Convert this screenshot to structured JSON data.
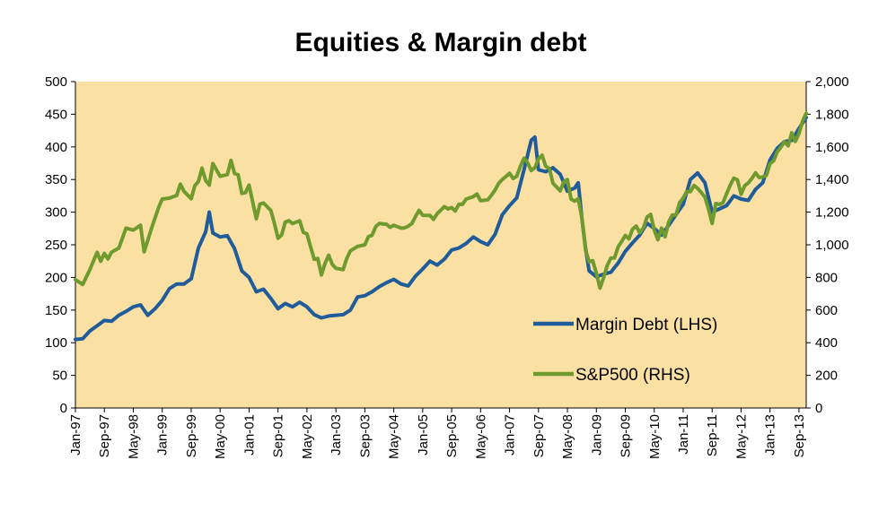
{
  "chart_data": {
    "type": "line",
    "title": "Equities & Margin debt",
    "xlabel": "",
    "ylabel_left": "",
    "ylabel_right": "",
    "x_tick_labels": [
      "Jan-97",
      "Sep-97",
      "May-98",
      "Jan-99",
      "Sep-99",
      "May-00",
      "Jan-01",
      "Sep-01",
      "May-02",
      "Jan-03",
      "Sep-03",
      "May-04",
      "Jan-05",
      "Sep-05",
      "May-06",
      "Jan-07",
      "Sep-07",
      "May-08",
      "Jan-09",
      "Sep-09",
      "May-10",
      "Jan-11",
      "Sep-11",
      "May-12",
      "Jan-13",
      "Sep-13"
    ],
    "x_range": [
      "Jan-97",
      "Nov-13"
    ],
    "y_left": {
      "min": 0,
      "max": 500,
      "step": 50,
      "tick_labels": [
        "0",
        "50",
        "100",
        "150",
        "200",
        "250",
        "300",
        "350",
        "400",
        "450",
        "500"
      ]
    },
    "y_right": {
      "min": 0,
      "max": 2000,
      "step": 200,
      "tick_labels": [
        "0",
        "200",
        "400",
        "600",
        "800",
        "1,000",
        "1,200",
        "1,400",
        "1,600",
        "1,800",
        "2,000"
      ]
    },
    "plot_background": "#FBE0A4",
    "grid": false,
    "legend_position": "lower-right inside plot",
    "series": [
      {
        "name": "Margin Debt (LHS)",
        "axis": "left",
        "color": "#1F5C99",
        "points": [
          [
            "Jan-97",
            105
          ],
          [
            "Mar-97",
            106
          ],
          [
            "May-97",
            118
          ],
          [
            "Jul-97",
            126
          ],
          [
            "Sep-97",
            134
          ],
          [
            "Nov-97",
            133
          ],
          [
            "Jan-98",
            142
          ],
          [
            "Mar-98",
            148
          ],
          [
            "May-98",
            155
          ],
          [
            "Jul-98",
            158
          ],
          [
            "Sep-98",
            142
          ],
          [
            "Nov-98",
            152
          ],
          [
            "Jan-99",
            165
          ],
          [
            "Mar-99",
            183
          ],
          [
            "May-99",
            190
          ],
          [
            "Jul-99",
            190
          ],
          [
            "Sep-99",
            198
          ],
          [
            "Nov-99",
            245
          ],
          [
            "Jan-00",
            270
          ],
          [
            "Feb-00",
            300
          ],
          [
            "Mar-00",
            268
          ],
          [
            "May-00",
            262
          ],
          [
            "Jul-00",
            264
          ],
          [
            "Sep-00",
            244
          ],
          [
            "Nov-00",
            210
          ],
          [
            "Jan-01",
            200
          ],
          [
            "Mar-01",
            178
          ],
          [
            "May-01",
            182
          ],
          [
            "Jul-01",
            168
          ],
          [
            "Sep-01",
            152
          ],
          [
            "Nov-01",
            160
          ],
          [
            "Jan-02",
            155
          ],
          [
            "Mar-02",
            162
          ],
          [
            "May-02",
            155
          ],
          [
            "Jul-02",
            143
          ],
          [
            "Sep-02",
            138
          ],
          [
            "Nov-02",
            141
          ],
          [
            "Jan-03",
            142
          ],
          [
            "Mar-03",
            143
          ],
          [
            "May-03",
            150
          ],
          [
            "Jul-03",
            170
          ],
          [
            "Sep-03",
            172
          ],
          [
            "Nov-03",
            178
          ],
          [
            "Jan-04",
            186
          ],
          [
            "Mar-04",
            192
          ],
          [
            "May-04",
            197
          ],
          [
            "Jul-04",
            190
          ],
          [
            "Sep-04",
            187
          ],
          [
            "Nov-04",
            202
          ],
          [
            "Jan-05",
            213
          ],
          [
            "Mar-05",
            225
          ],
          [
            "May-05",
            219
          ],
          [
            "Jul-05",
            228
          ],
          [
            "Sep-05",
            242
          ],
          [
            "Nov-05",
            245
          ],
          [
            "Jan-06",
            252
          ],
          [
            "Mar-06",
            262
          ],
          [
            "May-06",
            255
          ],
          [
            "Jul-06",
            250
          ],
          [
            "Sep-06",
            266
          ],
          [
            "Nov-06",
            296
          ],
          [
            "Jan-07",
            310
          ],
          [
            "Mar-07",
            322
          ],
          [
            "May-07",
            365
          ],
          [
            "Jul-07",
            410
          ],
          [
            "Aug-07",
            415
          ],
          [
            "Sep-07",
            365
          ],
          [
            "Nov-07",
            362
          ],
          [
            "Jan-08",
            368
          ],
          [
            "Mar-08",
            358
          ],
          [
            "May-08",
            332
          ],
          [
            "Jul-08",
            337
          ],
          [
            "Aug-08",
            345
          ],
          [
            "Sep-08",
            290
          ],
          [
            "Oct-08",
            245
          ],
          [
            "Nov-08",
            210
          ],
          [
            "Jan-09",
            201
          ],
          [
            "Mar-09",
            205
          ],
          [
            "May-09",
            208
          ],
          [
            "Jul-09",
            222
          ],
          [
            "Sep-09",
            240
          ],
          [
            "Nov-09",
            253
          ],
          [
            "Jan-10",
            265
          ],
          [
            "Mar-10",
            283
          ],
          [
            "May-10",
            275
          ],
          [
            "Jul-10",
            265
          ],
          [
            "Sep-10",
            280
          ],
          [
            "Nov-10",
            296
          ],
          [
            "Jan-11",
            312
          ],
          [
            "Mar-11",
            350
          ],
          [
            "May-11",
            360
          ],
          [
            "Jul-11",
            345
          ],
          [
            "Sep-11",
            300
          ],
          [
            "Nov-11",
            305
          ],
          [
            "Jan-12",
            310
          ],
          [
            "Mar-12",
            325
          ],
          [
            "May-12",
            320
          ],
          [
            "Jul-12",
            318
          ],
          [
            "Sep-12",
            335
          ],
          [
            "Nov-12",
            345
          ],
          [
            "Jan-13",
            380
          ],
          [
            "Mar-13",
            398
          ],
          [
            "May-13",
            408
          ],
          [
            "Jul-13",
            410
          ],
          [
            "Sep-13",
            428
          ],
          [
            "Nov-13",
            445
          ]
        ]
      },
      {
        "name": "S&P500 (RHS)",
        "axis": "right",
        "color": "#6E9A2E",
        "points": [
          [
            "Jan-97",
            786
          ],
          [
            "Mar-97",
            757
          ],
          [
            "May-97",
            848
          ],
          [
            "Jul-97",
            954
          ],
          [
            "Aug-97",
            899
          ],
          [
            "Sep-97",
            947
          ],
          [
            "Oct-97",
            914
          ],
          [
            "Nov-97",
            955
          ],
          [
            "Jan-98",
            980
          ],
          [
            "Mar-98",
            1102
          ],
          [
            "May-98",
            1090
          ],
          [
            "Jul-98",
            1120
          ],
          [
            "Aug-98",
            957
          ],
          [
            "Oct-98",
            1098
          ],
          [
            "Dec-98",
            1229
          ],
          [
            "Jan-99",
            1280
          ],
          [
            "Mar-99",
            1286
          ],
          [
            "May-99",
            1302
          ],
          [
            "Jun-99",
            1372
          ],
          [
            "Jul-99",
            1328
          ],
          [
            "Sep-99",
            1282
          ],
          [
            "Oct-99",
            1362
          ],
          [
            "Nov-99",
            1388
          ],
          [
            "Dec-99",
            1469
          ],
          [
            "Jan-00",
            1394
          ],
          [
            "Feb-00",
            1366
          ],
          [
            "Mar-00",
            1498
          ],
          [
            "May-00",
            1420
          ],
          [
            "Jul-00",
            1430
          ],
          [
            "Aug-00",
            1517
          ],
          [
            "Sep-00",
            1436
          ],
          [
            "Oct-00",
            1429
          ],
          [
            "Nov-00",
            1315
          ],
          [
            "Dec-00",
            1320
          ],
          [
            "Jan-01",
            1366
          ],
          [
            "Mar-01",
            1160
          ],
          [
            "Apr-01",
            1249
          ],
          [
            "May-01",
            1256
          ],
          [
            "Jul-01",
            1211
          ],
          [
            "Aug-01",
            1133
          ],
          [
            "Sep-01",
            1040
          ],
          [
            "Oct-01",
            1060
          ],
          [
            "Nov-01",
            1139
          ],
          [
            "Dec-01",
            1148
          ],
          [
            "Jan-02",
            1130
          ],
          [
            "Mar-02",
            1147
          ],
          [
            "Apr-02",
            1076
          ],
          [
            "May-02",
            1067
          ],
          [
            "Jun-02",
            989
          ],
          [
            "Jul-02",
            911
          ],
          [
            "Aug-02",
            916
          ],
          [
            "Sep-02",
            815
          ],
          [
            "Oct-02",
            885
          ],
          [
            "Nov-02",
            936
          ],
          [
            "Dec-02",
            880
          ],
          [
            "Jan-03",
            856
          ],
          [
            "Mar-03",
            848
          ],
          [
            "Apr-03",
            916
          ],
          [
            "May-03",
            963
          ],
          [
            "Jul-03",
            990
          ],
          [
            "Sep-03",
            1000
          ],
          [
            "Oct-03",
            1050
          ],
          [
            "Nov-03",
            1058
          ],
          [
            "Dec-03",
            1111
          ],
          [
            "Jan-04",
            1131
          ],
          [
            "Mar-04",
            1126
          ],
          [
            "Apr-04",
            1107
          ],
          [
            "May-04",
            1120
          ],
          [
            "Jul-04",
            1102
          ],
          [
            "Aug-04",
            1104
          ],
          [
            "Sep-04",
            1114
          ],
          [
            "Oct-04",
            1130
          ],
          [
            "Nov-04",
            1173
          ],
          [
            "Dec-04",
            1211
          ],
          [
            "Jan-05",
            1181
          ],
          [
            "Mar-05",
            1180
          ],
          [
            "Apr-05",
            1156
          ],
          [
            "May-05",
            1191
          ],
          [
            "Jul-05",
            1234
          ],
          [
            "Aug-05",
            1220
          ],
          [
            "Sep-05",
            1228
          ],
          [
            "Oct-05",
            1207
          ],
          [
            "Nov-05",
            1249
          ],
          [
            "Dec-05",
            1248
          ],
          [
            "Jan-06",
            1280
          ],
          [
            "Mar-06",
            1295
          ],
          [
            "Apr-06",
            1311
          ],
          [
            "May-06",
            1270
          ],
          [
            "Jul-06",
            1276
          ],
          [
            "Aug-06",
            1304
          ],
          [
            "Sep-06",
            1335
          ],
          [
            "Oct-06",
            1377
          ],
          [
            "Nov-06",
            1400
          ],
          [
            "Dec-06",
            1418
          ],
          [
            "Jan-07",
            1438
          ],
          [
            "Feb-07",
            1406
          ],
          [
            "Mar-07",
            1420
          ],
          [
            "Apr-07",
            1482
          ],
          [
            "May-07",
            1530
          ],
          [
            "Jun-07",
            1503
          ],
          [
            "Jul-07",
            1455
          ],
          [
            "Aug-07",
            1473
          ],
          [
            "Sep-07",
            1526
          ],
          [
            "Oct-07",
            1549
          ],
          [
            "Nov-07",
            1481
          ],
          [
            "Dec-07",
            1468
          ],
          [
            "Jan-08",
            1378
          ],
          [
            "Mar-08",
            1330
          ],
          [
            "Apr-08",
            1385
          ],
          [
            "May-08",
            1400
          ],
          [
            "Jun-08",
            1280
          ],
          [
            "Jul-08",
            1267
          ],
          [
            "Aug-08",
            1282
          ],
          [
            "Sep-08",
            1166
          ],
          [
            "Oct-08",
            968
          ],
          [
            "Nov-08",
            896
          ],
          [
            "Dec-08",
            903
          ],
          [
            "Jan-09",
            826
          ],
          [
            "Feb-09",
            735
          ],
          [
            "Mar-09",
            798
          ],
          [
            "Apr-09",
            873
          ],
          [
            "May-09",
            919
          ],
          [
            "Jun-09",
            919
          ],
          [
            "Jul-09",
            987
          ],
          [
            "Aug-09",
            1021
          ],
          [
            "Sep-09",
            1057
          ],
          [
            "Oct-09",
            1036
          ],
          [
            "Nov-09",
            1096
          ],
          [
            "Dec-09",
            1115
          ],
          [
            "Jan-10",
            1074
          ],
          [
            "Feb-10",
            1104
          ],
          [
            "Mar-10",
            1169
          ],
          [
            "Apr-10",
            1187
          ],
          [
            "May-10",
            1089
          ],
          [
            "Jun-10",
            1031
          ],
          [
            "Jul-10",
            1102
          ],
          [
            "Aug-10",
            1049
          ],
          [
            "Sep-10",
            1141
          ],
          [
            "Oct-10",
            1183
          ],
          [
            "Nov-10",
            1181
          ],
          [
            "Dec-10",
            1258
          ],
          [
            "Jan-11",
            1286
          ],
          [
            "Feb-11",
            1327
          ],
          [
            "Mar-11",
            1326
          ],
          [
            "Apr-11",
            1364
          ],
          [
            "May-11",
            1345
          ],
          [
            "Jun-11",
            1321
          ],
          [
            "Jul-11",
            1292
          ],
          [
            "Aug-11",
            1219
          ],
          [
            "Sep-11",
            1131
          ],
          [
            "Oct-11",
            1253
          ],
          [
            "Nov-11",
            1247
          ],
          [
            "Dec-11",
            1258
          ],
          [
            "Jan-12",
            1312
          ],
          [
            "Feb-12",
            1366
          ],
          [
            "Mar-12",
            1408
          ],
          [
            "Apr-12",
            1398
          ],
          [
            "May-12",
            1310
          ],
          [
            "Jun-12",
            1362
          ],
          [
            "Jul-12",
            1379
          ],
          [
            "Aug-12",
            1407
          ],
          [
            "Sep-12",
            1441
          ],
          [
            "Oct-12",
            1412
          ],
          [
            "Nov-12",
            1416
          ],
          [
            "Dec-12",
            1426
          ],
          [
            "Jan-13",
            1498
          ],
          [
            "Feb-13",
            1515
          ],
          [
            "Mar-13",
            1569
          ],
          [
            "Apr-13",
            1598
          ],
          [
            "May-13",
            1631
          ],
          [
            "Jun-13",
            1606
          ],
          [
            "Jul-13",
            1686
          ],
          [
            "Aug-13",
            1633
          ],
          [
            "Sep-13",
            1682
          ],
          [
            "Oct-13",
            1757
          ],
          [
            "Nov-13",
            1806
          ]
        ]
      }
    ]
  }
}
